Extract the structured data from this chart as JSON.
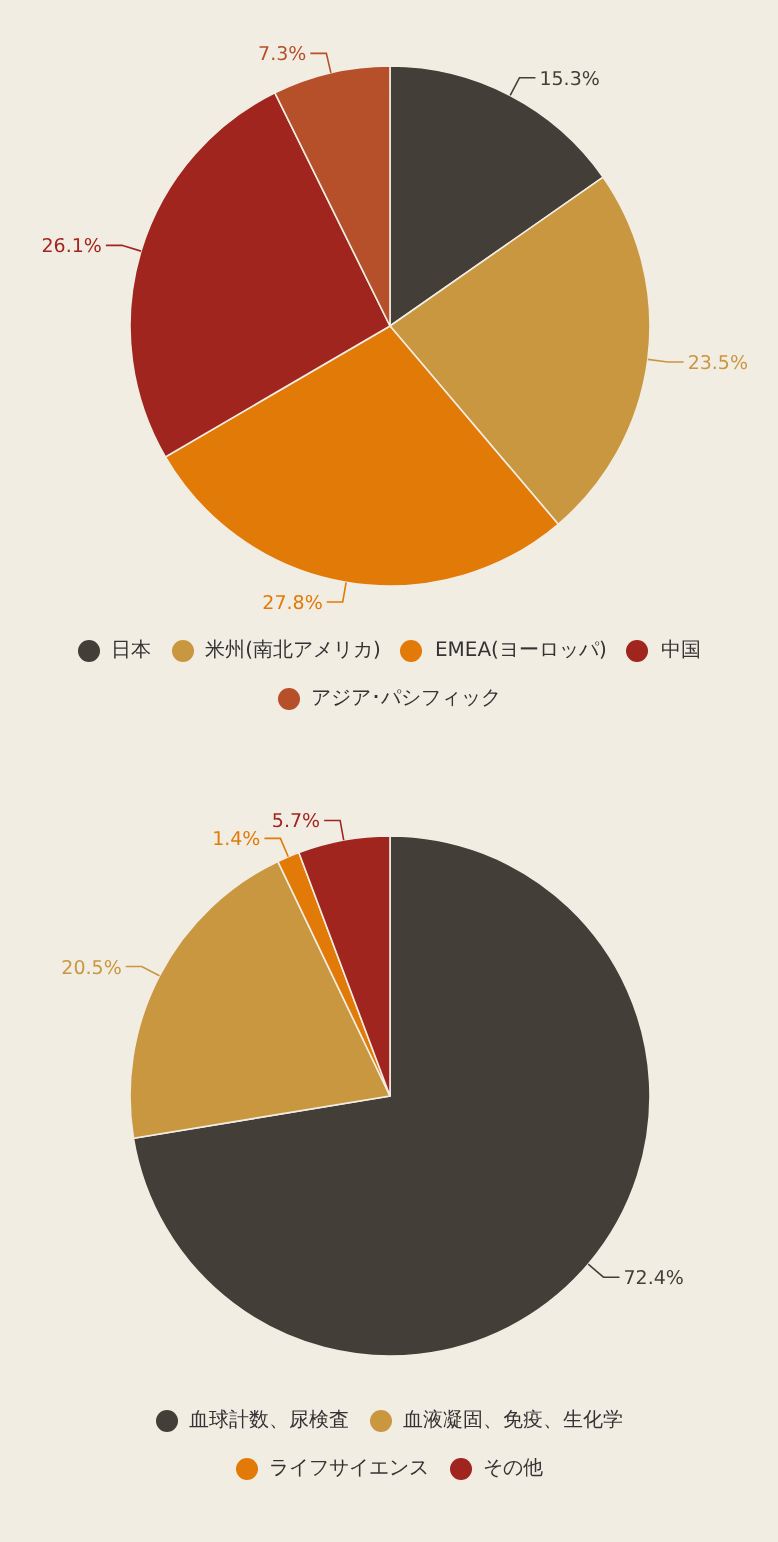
{
  "chart_data": [
    {
      "type": "pie",
      "categories": [
        "日本",
        "米州(南北アメリカ)",
        "EMEA(ヨーロッパ)",
        "中国",
        "アジア･パシフィック"
      ],
      "values": [
        15.3,
        23.5,
        27.8,
        26.1,
        7.3
      ],
      "value_labels": [
        "15.3%",
        "23.5%",
        "27.8%",
        "26.1%",
        "7.3%"
      ],
      "colors": [
        "#433e37",
        "#c9973f",
        "#e27a07",
        "#a0251e",
        "#b5502a"
      ],
      "legend": "bottom"
    },
    {
      "type": "pie",
      "categories": [
        "血球計数、尿検査",
        "血液凝固、免疫、生化学",
        "ライフサイエンス",
        "その他"
      ],
      "values": [
        72.4,
        20.5,
        1.4,
        5.7
      ],
      "value_labels": [
        "72.4%",
        "20.5%",
        "1.4%",
        "5.7%"
      ],
      "colors": [
        "#433e37",
        "#c9973f",
        "#e27a07",
        "#a0251e"
      ],
      "legend": "bottom"
    }
  ]
}
